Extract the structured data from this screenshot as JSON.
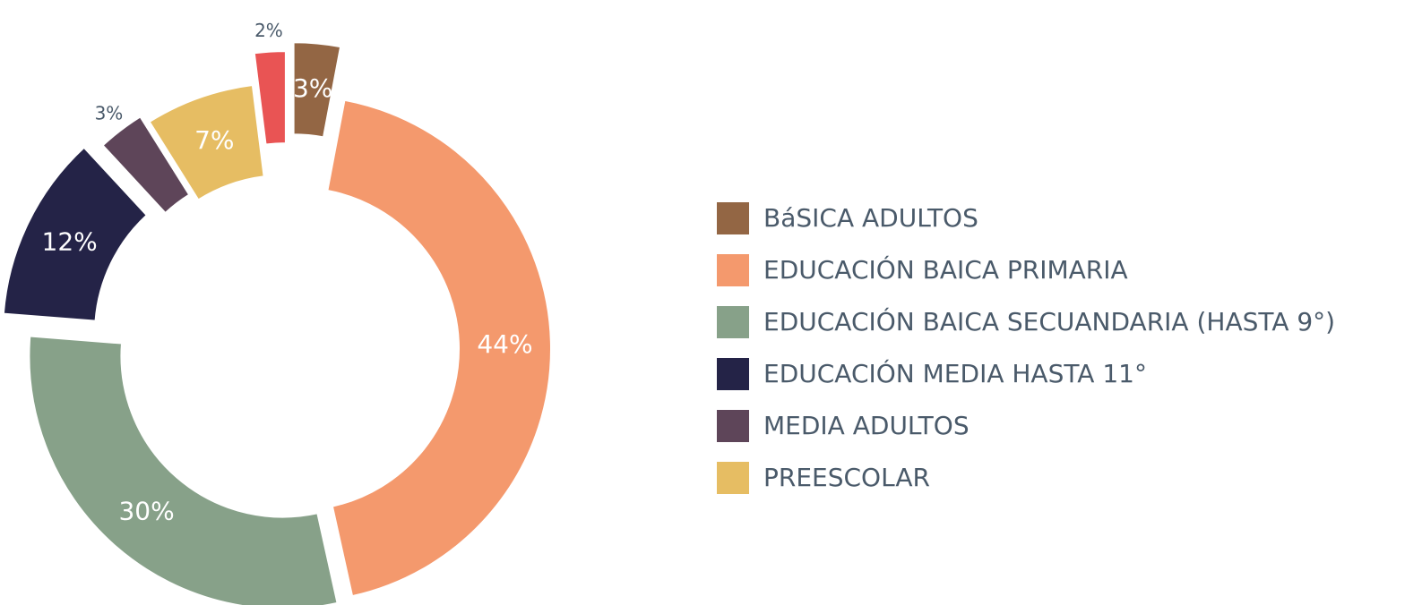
{
  "chart_data": {
    "type": "donut",
    "categories": [
      "BáSICA ADULTOS",
      "EDUCACIÓN BAICA PRIMARIA",
      "EDUCACIÓN BAICA SECUANDARIA (HASTA 9°)",
      "EDUCACIÓN MEDIA HASTA 11°",
      "MEDIA ADULTOS",
      "PREESCOLAR",
      null
    ],
    "values": [
      3,
      44,
      30,
      12,
      3,
      7,
      2
    ],
    "value_labels": [
      "3%",
      "44%",
      "30%",
      "12%",
      "3%",
      "7%",
      "2%"
    ],
    "colors": [
      "#936644",
      "#f4996d",
      "#87a189",
      "#242347",
      "#5e4559",
      "#e6bd63",
      "#e95454"
    ],
    "legend": "right"
  }
}
